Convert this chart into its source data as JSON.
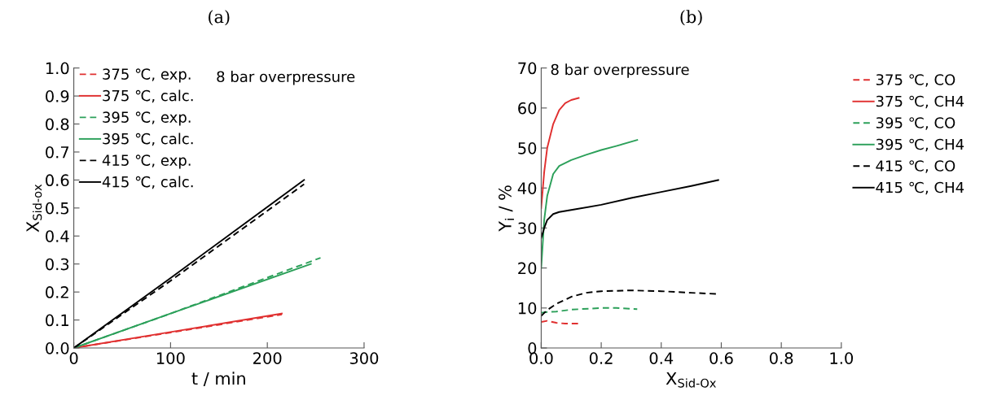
{
  "chart_data": [
    {
      "type": "line",
      "title": "(a)",
      "xlabel": "t / min",
      "ylabel": "X$_{Sid-ox}$",
      "xlim": [
        0,
        300
      ],
      "xticks": [
        0,
        100,
        200,
        300
      ],
      "ylim": [
        0,
        1.0
      ],
      "yticks": [
        {
          "value": 0,
          "label": "0.0"
        },
        0.1,
        0.2,
        0.3,
        0.4,
        0.5,
        0.6,
        0.7,
        0.8,
        0.9,
        {
          "value": 1.0,
          "label": "1.0"
        }
      ],
      "grid": false,
      "legend": "top left",
      "marker": "none",
      "annotations": [
        "8 bar overpressure"
      ],
      "series": [
        {
          "name": "375 ℃, exp.",
          "color": "#e03030",
          "line_style": "dashed",
          "x": [
            0,
            100,
            215
          ],
          "values": [
            0,
            0.055,
            0.12
          ]
        },
        {
          "name": "375 ℃, calc.",
          "color": "#e03030",
          "line_style": "solid",
          "x": [
            0,
            100,
            215
          ],
          "values": [
            0,
            0.057,
            0.123
          ]
        },
        {
          "name": "395 ℃, exp.",
          "color": "#2ca05a",
          "line_style": "dashed",
          "x": [
            0,
            100,
            255
          ],
          "values": [
            0,
            0.123,
            0.322
          ]
        },
        {
          "name": "395 ℃, calc.",
          "color": "#2ca05a",
          "line_style": "solid",
          "x": [
            0,
            100,
            245
          ],
          "values": [
            0,
            0.123,
            0.3
          ]
        },
        {
          "name": "415 ℃, exp.",
          "color": "#000000",
          "line_style": "dashed",
          "x": [
            0,
            100,
            238
          ],
          "values": [
            0,
            0.24,
            0.585
          ]
        },
        {
          "name": "415 ℃, calc.",
          "color": "#000000",
          "line_style": "solid",
          "x": [
            0,
            100,
            238
          ],
          "values": [
            0,
            0.25,
            0.6
          ]
        }
      ]
    },
    {
      "type": "line",
      "title": "(b)",
      "xlabel": "X$_{Sid-Ox}$",
      "ylabel": "Y$_{i}$ / %",
      "xlim": [
        0,
        1.0
      ],
      "xticks": [
        {
          "value": 0,
          "label": "0.0"
        },
        0.2,
        0.4,
        0.6,
        0.8,
        {
          "value": 1.0,
          "label": "1.0"
        }
      ],
      "ylim": [
        0,
        70
      ],
      "yticks": [
        0,
        10,
        20,
        30,
        40,
        50,
        60,
        70
      ],
      "grid": false,
      "legend": "right",
      "marker": "none",
      "annotations": [
        "8 bar overpressure"
      ],
      "series": [
        {
          "name": "375 ℃, CO",
          "color": "#e03030",
          "line_style": "dashed",
          "x": [
            0,
            0.02,
            0.05,
            0.08,
            0.125
          ],
          "values": [
            6.5,
            6.8,
            6.3,
            6.1,
            6.1
          ]
        },
        {
          "name": "375 ℃, CH4",
          "color": "#e03030",
          "line_style": "solid",
          "x": [
            0,
            0.01,
            0.02,
            0.04,
            0.06,
            0.08,
            0.1,
            0.125
          ],
          "values": [
            35,
            44,
            50,
            56,
            59.5,
            61.2,
            62,
            62.5
          ]
        },
        {
          "name": "395 ℃, CO",
          "color": "#2ca05a",
          "line_style": "dashed",
          "x": [
            0,
            0.02,
            0.05,
            0.1,
            0.2,
            0.25,
            0.32
          ],
          "values": [
            8.8,
            9,
            9.1,
            9.6,
            10,
            10,
            9.7
          ]
        },
        {
          "name": "395 ℃, CH4",
          "color": "#2ca05a",
          "line_style": "solid",
          "x": [
            0,
            0.01,
            0.02,
            0.04,
            0.06,
            0.1,
            0.15,
            0.2,
            0.25,
            0.32
          ],
          "values": [
            20,
            32,
            38,
            43.5,
            45.5,
            47,
            48.3,
            49.5,
            50.5,
            52
          ]
        },
        {
          "name": "415 ℃, CO",
          "color": "#000000",
          "line_style": "dashed",
          "x": [
            0,
            0.02,
            0.05,
            0.1,
            0.15,
            0.2,
            0.3,
            0.4,
            0.5,
            0.59
          ],
          "values": [
            8,
            9.5,
            11,
            12.8,
            13.8,
            14.2,
            14.4,
            14.2,
            13.8,
            13.5
          ]
        },
        {
          "name": "415 ℃, CH4",
          "color": "#000000",
          "line_style": "solid",
          "x": [
            0,
            0.01,
            0.02,
            0.04,
            0.06,
            0.1,
            0.2,
            0.3,
            0.4,
            0.5,
            0.59
          ],
          "values": [
            27.5,
            30,
            32,
            33.5,
            34,
            34.5,
            35.8,
            37.5,
            39,
            40.5,
            42
          ]
        }
      ]
    }
  ]
}
